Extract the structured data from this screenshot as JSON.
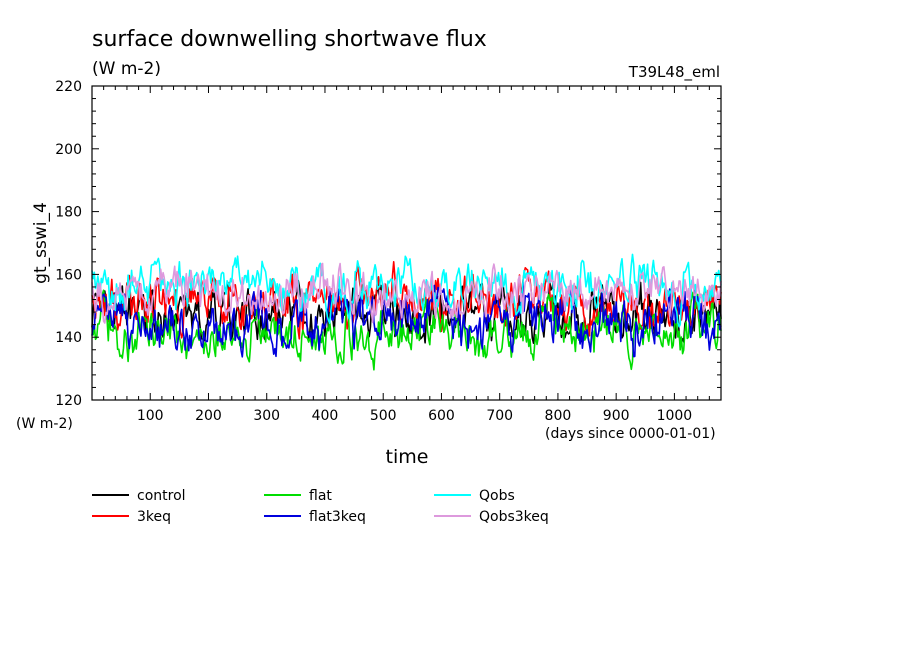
{
  "chart_data": {
    "type": "line",
    "title": "surface downwelling shortwave flux",
    "subtitle": "(W m-2)",
    "run_label": "T39L48_eml",
    "ylabel": "gt_sswi_4",
    "yunit": "(W m-2)",
    "xlabel": "time",
    "xunit": "(days since 0000-01-01)",
    "xlim": [
      0,
      1080
    ],
    "ylim": [
      120,
      220
    ],
    "xticks": [
      100,
      200,
      300,
      400,
      500,
      600,
      700,
      800,
      900,
      1000
    ],
    "yticks": [
      120,
      140,
      160,
      180,
      200,
      220
    ],
    "grid": false,
    "legend_position": "bottom",
    "series": [
      {
        "name": "control",
        "color": "#000000",
        "mean": 147,
        "amp": 5,
        "seed": 11
      },
      {
        "name": "3keq",
        "color": "#ff0000",
        "mean": 151,
        "amp": 5,
        "seed": 23
      },
      {
        "name": "flat",
        "color": "#00dd00",
        "mean": 142,
        "amp": 5,
        "seed": 37
      },
      {
        "name": "flat3keq",
        "color": "#0000dd",
        "mean": 145,
        "amp": 5.5,
        "seed": 41
      },
      {
        "name": "Qobs",
        "color": "#00ffff",
        "mean": 157,
        "amp": 4.5,
        "seed": 53
      },
      {
        "name": "Qobs3keq",
        "color": "#dd99dd",
        "mean": 154,
        "amp": 4.5,
        "seed": 67
      }
    ]
  }
}
